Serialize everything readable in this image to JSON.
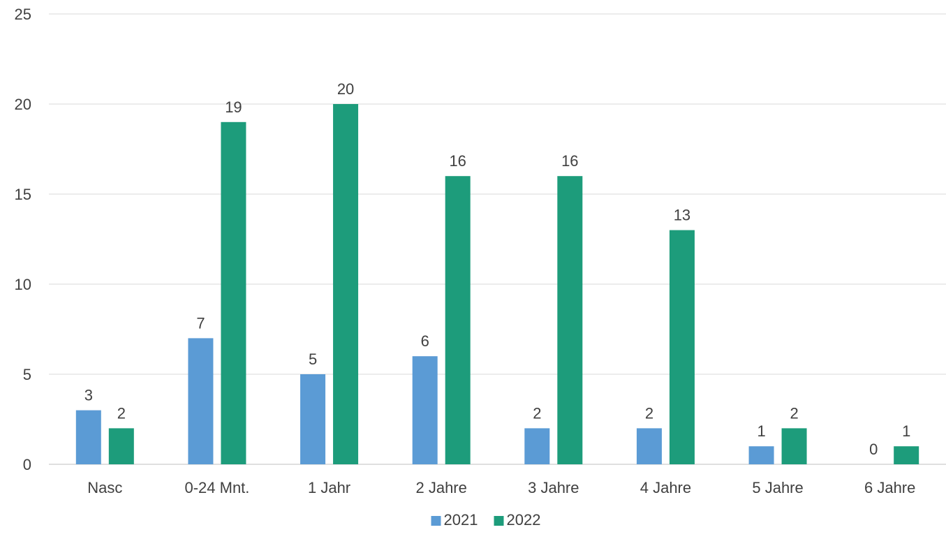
{
  "chart_data": {
    "type": "bar",
    "categories": [
      "Nasc",
      "0-24 Mnt.",
      "1 Jahr",
      "2 Jahre",
      "3 Jahre",
      "4 Jahre",
      "5 Jahre",
      "6 Jahre"
    ],
    "series": [
      {
        "name": "2021",
        "values": [
          3,
          7,
          5,
          6,
          2,
          2,
          1,
          0
        ],
        "color": "#5B9BD5"
      },
      {
        "name": "2022",
        "values": [
          2,
          19,
          20,
          16,
          16,
          13,
          2,
          1
        ],
        "color": "#1D9C7B"
      }
    ],
    "ylim": [
      0,
      25
    ],
    "yticks": [
      0,
      5,
      10,
      15,
      20,
      25
    ],
    "grid": true,
    "legend_position": "bottom",
    "data_labels": true
  }
}
